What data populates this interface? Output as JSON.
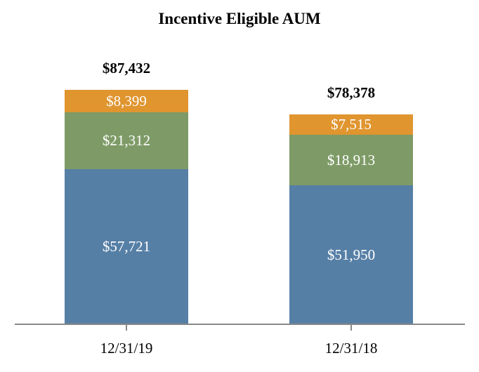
{
  "chart_data": {
    "type": "bar",
    "stacked": true,
    "title": "Incentive Eligible AUM",
    "categories": [
      "12/31/19",
      "12/31/18"
    ],
    "series": [
      {
        "name": "bottom-segment",
        "color": "#567FA6",
        "values": [
          57721,
          51950
        ],
        "labels": [
          "$57,721",
          "$51,950"
        ]
      },
      {
        "name": "middle-segment",
        "color": "#7E9B67",
        "values": [
          21312,
          18913
        ],
        "labels": [
          "$21,312",
          "$18,913"
        ]
      },
      {
        "name": "top-segment",
        "color": "#E0952F",
        "values": [
          8399,
          7515
        ],
        "labels": [
          "$8,399",
          "$7,515"
        ]
      }
    ],
    "totals": [
      87432,
      78378
    ],
    "total_labels": [
      "$87,432",
      "$78,378"
    ],
    "xlabel": "",
    "ylabel": "",
    "legend": "none",
    "grid": false,
    "axis_color": "#888888",
    "label_color_inside": "#ffffff",
    "label_color_outside": "#000000"
  }
}
